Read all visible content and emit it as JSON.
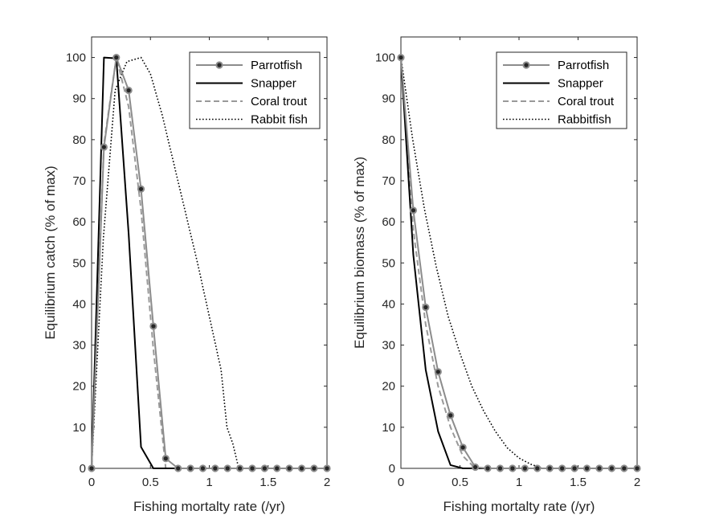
{
  "colors": {
    "parrotfish": "#8c8c8c",
    "marker_fill": "#262626",
    "snapper": "#000000",
    "coral_trout": "#999999",
    "rabbit_fish": "#000000",
    "axis": "#262626"
  },
  "chart_data": [
    {
      "type": "line",
      "xlabel": "Fishing mortalty rate (/yr)",
      "ylabel": "Equilibrium catch (% of max)",
      "xlim": [
        0,
        2
      ],
      "ylim": [
        0,
        105
      ],
      "xticks": [
        0,
        0.5,
        1,
        1.5,
        2
      ],
      "xtick_labels": [
        "0",
        "0.5",
        "1",
        "1.5",
        "2"
      ],
      "yticks": [
        0,
        10,
        20,
        30,
        40,
        50,
        60,
        70,
        80,
        90,
        100
      ],
      "ytick_labels": [
        "0",
        "10",
        "20",
        "30",
        "40",
        "50",
        "60",
        "70",
        "80",
        "90",
        "100"
      ],
      "legend_position": "top-right",
      "series": [
        {
          "key": "parrotfish",
          "name": "Parrotfish",
          "style": "solid-marker",
          "x": [
            0,
            0.105,
            0.21,
            0.315,
            0.42,
            0.525,
            0.63,
            0.735,
            0.84,
            0.945,
            1.05,
            1.155,
            1.26,
            1.365,
            1.47,
            1.575,
            1.68,
            1.785,
            1.89,
            2.0
          ],
          "y": [
            0,
            78.2,
            100,
            92,
            68,
            34.6,
            2.4,
            0,
            0,
            0,
            0,
            0,
            0,
            0,
            0,
            0,
            0,
            0,
            0,
            0
          ]
        },
        {
          "key": "snapper",
          "name": "Snapper",
          "style": "solid",
          "x": [
            0,
            0.105,
            0.21,
            0.315,
            0.42,
            0.525,
            0.63,
            0.735,
            0.84,
            0.945,
            1.05,
            1.155,
            1.26,
            1.365,
            1.47,
            1.575,
            1.68,
            1.785,
            1.89,
            2.0
          ],
          "y": [
            0,
            100,
            99.8,
            57,
            5.2,
            0,
            0,
            0,
            0,
            0,
            0,
            0,
            0,
            0,
            0,
            0,
            0,
            0,
            0,
            0
          ]
        },
        {
          "key": "coral_trout",
          "name": "Coral trout",
          "style": "dashed",
          "x": [
            0,
            0.105,
            0.21,
            0.315,
            0.42,
            0.525,
            0.63,
            0.735,
            0.84,
            0.945,
            1.05,
            1.155,
            1.26,
            1.365,
            1.47,
            1.575,
            1.68,
            1.785,
            1.89,
            2.0
          ],
          "y": [
            0,
            79,
            100,
            88,
            63,
            29,
            0,
            0,
            0,
            0,
            0,
            0,
            0,
            0,
            0,
            0,
            0,
            0,
            0,
            0
          ]
        },
        {
          "key": "rabbit_fish",
          "name": "Rabbit fish",
          "style": "dotted",
          "x": [
            0,
            0.1,
            0.2,
            0.3,
            0.42,
            0.5,
            0.6,
            0.7,
            0.8,
            0.9,
            1.0,
            1.1,
            1.15,
            1.2,
            1.25,
            1.3,
            1.5,
            1.75,
            2.0
          ],
          "y": [
            0,
            56,
            92,
            99,
            100,
            96,
            86,
            74,
            62,
            50,
            37,
            24,
            10,
            6,
            0,
            0,
            0,
            0,
            0
          ]
        }
      ]
    },
    {
      "type": "line",
      "xlabel": "Fishing mortalty rate (/yr)",
      "ylabel": "Equilibrium biomass (% of max)",
      "xlim": [
        0,
        2
      ],
      "ylim": [
        0,
        105
      ],
      "xticks": [
        0,
        0.5,
        1,
        1.5,
        2
      ],
      "xtick_labels": [
        "0",
        "0.5",
        "1",
        "1.5",
        "2"
      ],
      "yticks": [
        0,
        10,
        20,
        30,
        40,
        50,
        60,
        70,
        80,
        90,
        100
      ],
      "ytick_labels": [
        "0",
        "10",
        "20",
        "30",
        "40",
        "50",
        "60",
        "70",
        "80",
        "90",
        "100"
      ],
      "legend_position": "top-right",
      "series": [
        {
          "key": "parrotfish",
          "name": "Parrotfish",
          "style": "solid-marker",
          "x": [
            0,
            0.105,
            0.21,
            0.315,
            0.42,
            0.525,
            0.63,
            0.735,
            0.84,
            0.945,
            1.05,
            1.155,
            1.26,
            1.365,
            1.47,
            1.575,
            1.68,
            1.785,
            1.89,
            2.0
          ],
          "y": [
            100,
            62.8,
            39.2,
            23.5,
            12.9,
            5.1,
            0.3,
            0,
            0,
            0,
            0,
            0,
            0,
            0,
            0,
            0,
            0,
            0,
            0,
            0
          ]
        },
        {
          "key": "snapper",
          "name": "Snapper",
          "style": "solid",
          "x": [
            0,
            0.105,
            0.21,
            0.315,
            0.42,
            0.525,
            0.63,
            0.735,
            0.84,
            0.945,
            1.05,
            1.155,
            1.26,
            1.365,
            1.47,
            1.575,
            1.68,
            1.785,
            1.89,
            2.0
          ],
          "y": [
            100,
            52,
            24,
            9,
            0.8,
            0,
            0,
            0,
            0,
            0,
            0,
            0,
            0,
            0,
            0,
            0,
            0,
            0,
            0,
            0
          ]
        },
        {
          "key": "coral_trout",
          "name": "Coral trout",
          "style": "dashed",
          "x": [
            0,
            0.105,
            0.21,
            0.315,
            0.42,
            0.525,
            0.63,
            0.735,
            0.84,
            0.945,
            1.05,
            1.155,
            1.26,
            1.365,
            1.47,
            1.575,
            1.68,
            1.785,
            1.89,
            2.0
          ],
          "y": [
            100,
            58,
            35,
            20,
            10,
            3,
            0,
            0,
            0,
            0,
            0,
            0,
            0,
            0,
            0,
            0,
            0,
            0,
            0,
            0
          ]
        },
        {
          "key": "rabbit_fish",
          "name": "Rabbitfish",
          "style": "dotted",
          "x": [
            0,
            0.1,
            0.2,
            0.3,
            0.4,
            0.5,
            0.6,
            0.7,
            0.8,
            0.9,
            1.0,
            1.1,
            1.2,
            1.3,
            1.5,
            1.75,
            2.0
          ],
          "y": [
            100,
            80,
            63,
            49,
            37,
            28,
            20,
            14,
            9,
            5,
            2.5,
            1,
            0,
            0,
            0,
            0,
            0
          ]
        }
      ]
    }
  ]
}
